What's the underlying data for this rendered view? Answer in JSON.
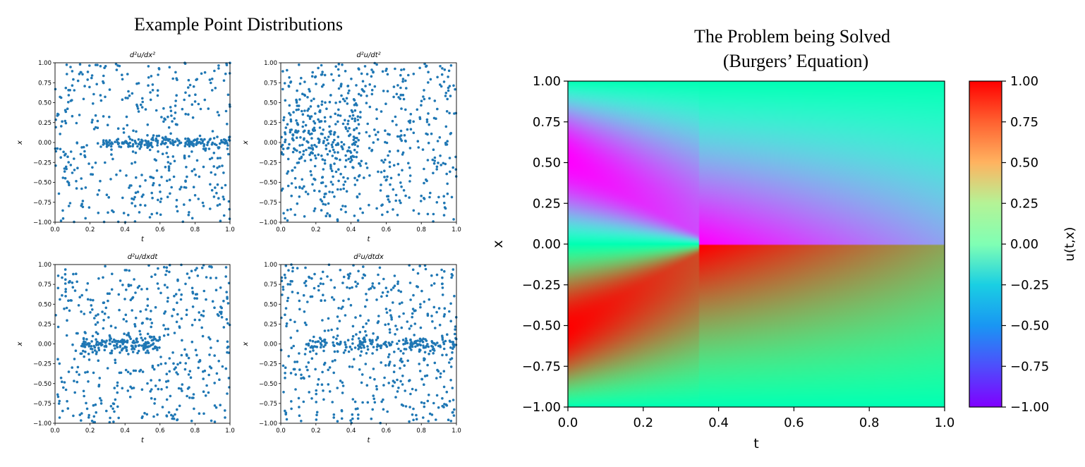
{
  "left_panel": {
    "title": "Example Point Distributions"
  },
  "right_panel": {
    "title_line1": "The Problem being Solved",
    "title_line2": "(Burgers’ Equation)"
  },
  "colors": {
    "points": "#1f77b4",
    "axes": "#000000",
    "background": "#ffffff"
  },
  "chart_data": [
    {
      "type": "scatter",
      "title": "d²u/dx²",
      "xlabel": "t",
      "ylabel": "x",
      "xlim": [
        0.0,
        1.0
      ],
      "ylim": [
        -1.0,
        1.0
      ],
      "xticks": [
        "0.0",
        "0.2",
        "0.4",
        "0.6",
        "0.8",
        "1.0"
      ],
      "yticks": [
        "−1.00",
        "−0.75",
        "−0.50",
        "−0.25",
        "0.00",
        "0.25",
        "0.50",
        "0.75",
        "1.00"
      ],
      "points": {
        "uniform_count": 430,
        "cluster": {
          "x_range": [
            0.27,
            1.0
          ],
          "y_center": 0.0,
          "y_spread": 0.03,
          "count": 170
        }
      }
    },
    {
      "type": "scatter",
      "title": "d²u/dt²",
      "xlabel": "t",
      "ylabel": "x",
      "xlim": [
        0.0,
        1.0
      ],
      "ylim": [
        -1.0,
        1.0
      ],
      "xticks": [
        "0.0",
        "0.2",
        "0.4",
        "0.6",
        "0.8",
        "1.0"
      ],
      "yticks": [
        "−1.00",
        "−0.75",
        "−0.50",
        "−0.25",
        "0.00",
        "0.25",
        "0.50",
        "0.75",
        "1.00"
      ],
      "points": {
        "uniform_count": 520,
        "cluster": {
          "x_range": [
            0.0,
            0.45
          ],
          "y_center": 0.05,
          "y_spread": 0.22,
          "count": 160
        }
      }
    },
    {
      "type": "scatter",
      "title": "d²u/dxdt",
      "xlabel": "t",
      "ylabel": "x",
      "xlim": [
        0.0,
        1.0
      ],
      "ylim": [
        -1.0,
        1.0
      ],
      "xticks": [
        "0.0",
        "0.2",
        "0.4",
        "0.6",
        "0.8",
        "1.0"
      ],
      "yticks": [
        "−1.00",
        "−0.75",
        "−0.50",
        "−0.25",
        "0.00",
        "0.25",
        "0.50",
        "0.75",
        "1.00"
      ],
      "points": {
        "uniform_count": 470,
        "cluster": {
          "x_range": [
            0.15,
            0.6
          ],
          "y_center": 0.0,
          "y_spread": 0.05,
          "count": 150
        }
      }
    },
    {
      "type": "scatter",
      "title": "d²u/dtdx",
      "xlabel": "t",
      "ylabel": "x",
      "xlim": [
        0.0,
        1.0
      ],
      "ylim": [
        -1.0,
        1.0
      ],
      "xticks": [
        "0.0",
        "0.2",
        "0.4",
        "0.6",
        "0.8",
        "1.0"
      ],
      "yticks": [
        "−1.00",
        "−0.75",
        "−0.50",
        "−0.25",
        "0.00",
        "0.25",
        "0.50",
        "0.75",
        "1.00"
      ],
      "points": {
        "uniform_count": 480,
        "cluster": {
          "x_range": [
            0.15,
            1.0
          ],
          "y_center": 0.0,
          "y_spread": 0.04,
          "count": 170
        }
      }
    },
    {
      "type": "heatmap",
      "title": "",
      "xlabel": "t",
      "ylabel": "x",
      "xlim": [
        0.0,
        1.0
      ],
      "ylim": [
        -1.0,
        1.0
      ],
      "xticks": [
        "0.0",
        "0.2",
        "0.4",
        "0.6",
        "0.8",
        "1.0"
      ],
      "yticks": [
        "−1.00",
        "−0.75",
        "−0.50",
        "−0.25",
        "0.00",
        "0.25",
        "0.50",
        "0.75",
        "1.00"
      ],
      "colormap": "rainbow",
      "colorbar": {
        "label": "u(t,x)",
        "range": [
          -1.0,
          1.0
        ],
        "ticks": [
          "−1.00",
          "−0.75",
          "−0.50",
          "−0.25",
          "0.00",
          "0.25",
          "0.50",
          "0.75",
          "1.00"
        ]
      },
      "field": "u(t,x) solution of Burgers' equation with u(0,x) = −sin(πx); shock forms at x = 0 near t ≈ 0.35"
    }
  ]
}
